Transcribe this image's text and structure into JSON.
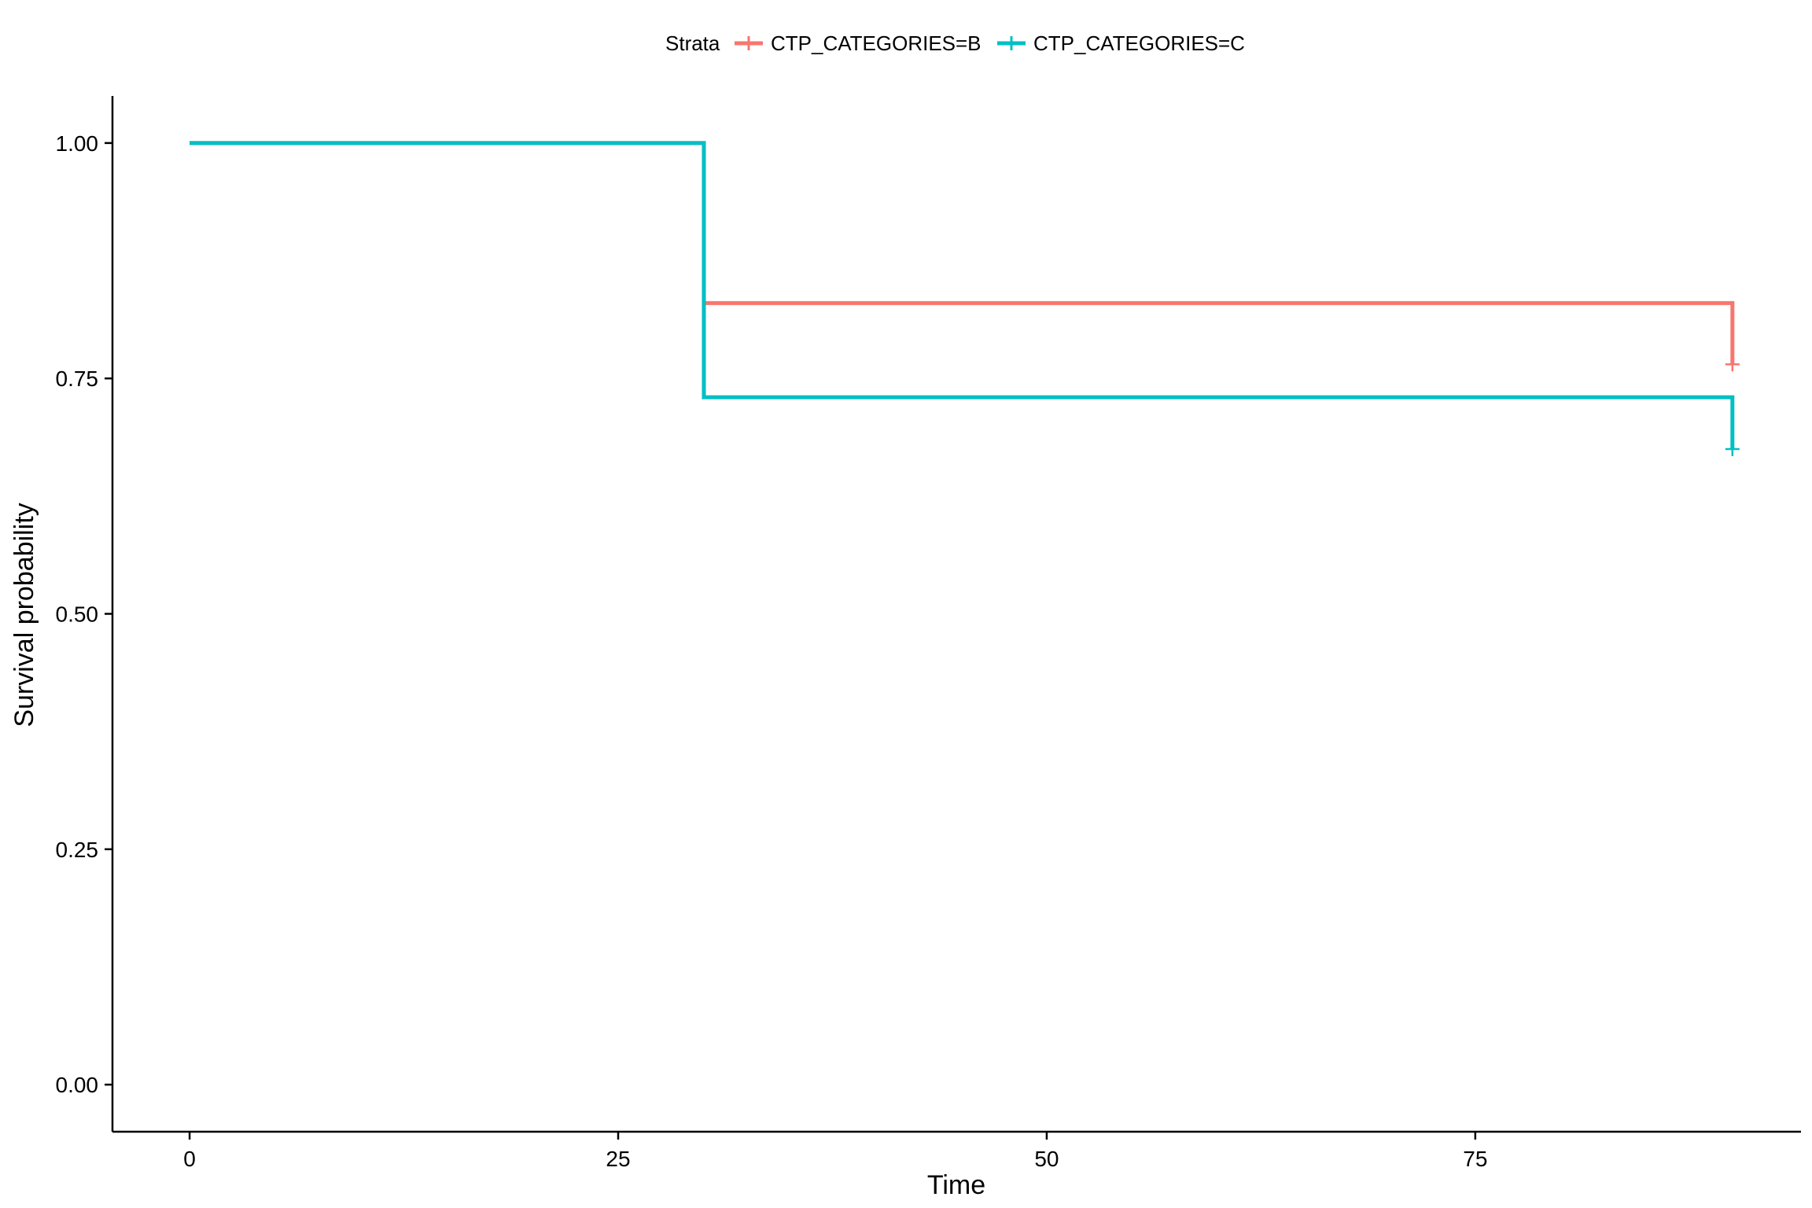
{
  "chart_data": {
    "type": "line",
    "subtype": "step",
    "title": "",
    "xlabel": "Time",
    "ylabel": "Survival probability",
    "xlim": [
      -4.5,
      94
    ],
    "ylim": [
      -0.05,
      1.05
    ],
    "xticks": [
      0,
      25,
      50,
      75
    ],
    "xtick_labels": [
      "0",
      "25",
      "50",
      "75"
    ],
    "yticks": [
      0,
      0.25,
      0.5,
      0.75,
      1
    ],
    "ytick_labels": [
      "0.00",
      "0.25",
      "0.50",
      "0.75",
      "1.00"
    ],
    "grid": false,
    "legend": {
      "placement": "top",
      "title": "Strata",
      "entries": [
        "CTP_CATEGORIES=B",
        "CTP_CATEGORIES=C"
      ]
    },
    "series": [
      {
        "name": "CTP_CATEGORIES=B",
        "color": "#F8766D",
        "x": [
          0,
          30,
          90
        ],
        "y": [
          1.0,
          0.83,
          0.765
        ],
        "censor": [
          {
            "x": 90,
            "y": 0.765
          }
        ]
      },
      {
        "name": "CTP_CATEGORIES=C",
        "color": "#00BFC4",
        "x": [
          0,
          30,
          90
        ],
        "y": [
          1.0,
          0.73,
          0.675
        ],
        "censor": [
          {
            "x": 90,
            "y": 0.675
          }
        ]
      }
    ]
  }
}
